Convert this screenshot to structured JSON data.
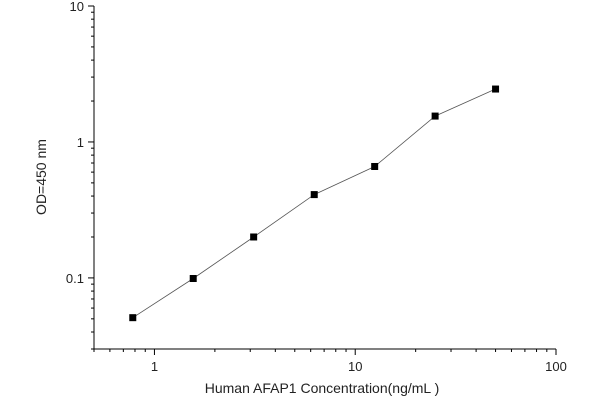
{
  "chart_data": {
    "type": "line",
    "xlabel": "Human AFAP1 Concentration(ng/mL )",
    "ylabel": "OD=450 nm",
    "x_scale": "log",
    "y_scale": "log",
    "xlim": [
      0.5,
      100
    ],
    "ylim": [
      0.03,
      10
    ],
    "x_ticks": [
      {
        "value": 1,
        "label": "1"
      },
      {
        "value": 10,
        "label": "10"
      },
      {
        "value": 100,
        "label": "100"
      }
    ],
    "y_ticks": [
      {
        "value": 0.1,
        "label": "0.1"
      },
      {
        "value": 1,
        "label": "1"
      },
      {
        "value": 10,
        "label": "10"
      }
    ],
    "grid": false,
    "marker": "square",
    "line_color": "#555555",
    "marker_color": "#000000",
    "series": [
      {
        "x": [
          0.78,
          1.56,
          3.12,
          6.25,
          12.5,
          25,
          50
        ],
        "y": [
          0.051,
          0.099,
          0.2,
          0.41,
          0.66,
          1.55,
          2.45
        ]
      }
    ]
  }
}
